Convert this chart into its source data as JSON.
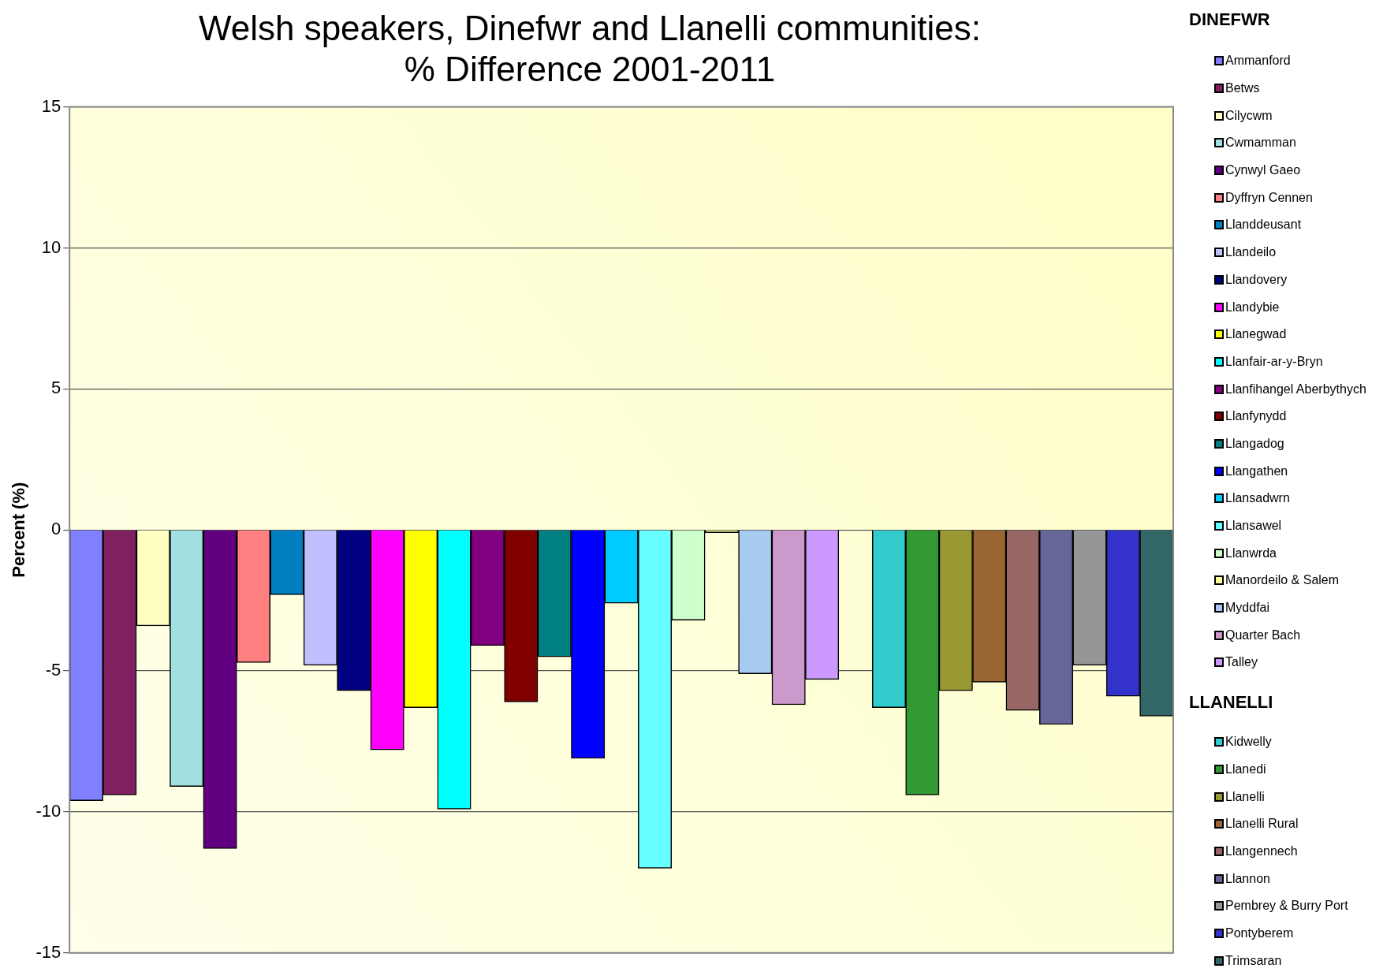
{
  "chart_data": {
    "type": "bar",
    "title": "Welsh speakers, Dinefwr and Llanelli communities:\n% Difference 2001-2011",
    "ylabel": "Percent (%)",
    "categories": [
      null,
      null,
      null,
      null,
      null,
      null,
      null,
      null,
      null,
      null,
      null,
      null,
      null,
      null,
      null,
      null,
      null,
      null,
      null,
      null,
      null,
      null,
      null,
      null,
      null,
      null,
      null,
      null,
      null,
      null,
      null,
      null,
      null
    ],
    "ylim": [
      -15,
      15
    ],
    "yticks": [
      -15,
      -10,
      -5,
      0,
      5,
      10,
      15
    ],
    "grid": "y",
    "legend": "right",
    "tick_labels": "y",
    "annotations": [
      "DINEFWR",
      "LLANELLI"
    ],
    "series": [
      {
        "name": "Ammanford",
        "color": "#8080ff",
        "values": [
          -9.6,
          null,
          null,
          null,
          null,
          null,
          null,
          null,
          null,
          null,
          null,
          null,
          null,
          null,
          null,
          null,
          null,
          null,
          null,
          null,
          null,
          null,
          null,
          null,
          null,
          null,
          null,
          null,
          null,
          null,
          null,
          null,
          null
        ]
      },
      {
        "name": "Betws",
        "color": "#802060",
        "values": [
          null,
          -9.4,
          null,
          null,
          null,
          null,
          null,
          null,
          null,
          null,
          null,
          null,
          null,
          null,
          null,
          null,
          null,
          null,
          null,
          null,
          null,
          null,
          null,
          null,
          null,
          null,
          null,
          null,
          null,
          null,
          null,
          null,
          null
        ]
      },
      {
        "name": "Cilycwm",
        "color": "#ffffc0",
        "values": [
          null,
          null,
          -3.4,
          null,
          null,
          null,
          null,
          null,
          null,
          null,
          null,
          null,
          null,
          null,
          null,
          null,
          null,
          null,
          null,
          null,
          null,
          null,
          null,
          null,
          null,
          null,
          null,
          null,
          null,
          null,
          null,
          null,
          null
        ]
      },
      {
        "name": "Cwmamman",
        "color": "#a0e0e0",
        "values": [
          null,
          null,
          null,
          -9.1,
          null,
          null,
          null,
          null,
          null,
          null,
          null,
          null,
          null,
          null,
          null,
          null,
          null,
          null,
          null,
          null,
          null,
          null,
          null,
          null,
          null,
          null,
          null,
          null,
          null,
          null,
          null,
          null,
          null
        ]
      },
      {
        "name": "Cynwyl Gaeo",
        "color": "#600080",
        "values": [
          null,
          null,
          null,
          null,
          -11.3,
          null,
          null,
          null,
          null,
          null,
          null,
          null,
          null,
          null,
          null,
          null,
          null,
          null,
          null,
          null,
          null,
          null,
          null,
          null,
          null,
          null,
          null,
          null,
          null,
          null,
          null,
          null,
          null
        ]
      },
      {
        "name": "Dyffryn Cennen",
        "color": "#ff8080",
        "values": [
          null,
          null,
          null,
          null,
          null,
          -4.7,
          null,
          null,
          null,
          null,
          null,
          null,
          null,
          null,
          null,
          null,
          null,
          null,
          null,
          null,
          null,
          null,
          null,
          null,
          null,
          null,
          null,
          null,
          null,
          null,
          null,
          null,
          null
        ]
      },
      {
        "name": "Llanddeusant",
        "color": "#0080c0",
        "values": [
          null,
          null,
          null,
          null,
          null,
          null,
          -2.3,
          null,
          null,
          null,
          null,
          null,
          null,
          null,
          null,
          null,
          null,
          null,
          null,
          null,
          null,
          null,
          null,
          null,
          null,
          null,
          null,
          null,
          null,
          null,
          null,
          null,
          null
        ]
      },
      {
        "name": "Llandeilo",
        "color": "#c0c0ff",
        "values": [
          null,
          null,
          null,
          null,
          null,
          null,
          null,
          -4.8,
          null,
          null,
          null,
          null,
          null,
          null,
          null,
          null,
          null,
          null,
          null,
          null,
          null,
          null,
          null,
          null,
          null,
          null,
          null,
          null,
          null,
          null,
          null,
          null,
          null
        ]
      },
      {
        "name": "Llandovery",
        "color": "#000080",
        "values": [
          null,
          null,
          null,
          null,
          null,
          null,
          null,
          null,
          -5.7,
          null,
          null,
          null,
          null,
          null,
          null,
          null,
          null,
          null,
          null,
          null,
          null,
          null,
          null,
          null,
          null,
          null,
          null,
          null,
          null,
          null,
          null,
          null,
          null
        ]
      },
      {
        "name": "Llandybie",
        "color": "#ff00ff",
        "values": [
          null,
          null,
          null,
          null,
          null,
          null,
          null,
          null,
          null,
          -7.8,
          null,
          null,
          null,
          null,
          null,
          null,
          null,
          null,
          null,
          null,
          null,
          null,
          null,
          null,
          null,
          null,
          null,
          null,
          null,
          null,
          null,
          null,
          null
        ]
      },
      {
        "name": "Llanegwad",
        "color": "#ffff00",
        "values": [
          null,
          null,
          null,
          null,
          null,
          null,
          null,
          null,
          null,
          null,
          -6.3,
          null,
          null,
          null,
          null,
          null,
          null,
          null,
          null,
          null,
          null,
          null,
          null,
          null,
          null,
          null,
          null,
          null,
          null,
          null,
          null,
          null,
          null
        ]
      },
      {
        "name": "Llanfair-ar-y-Bryn",
        "color": "#00ffff",
        "values": [
          null,
          null,
          null,
          null,
          null,
          null,
          null,
          null,
          null,
          null,
          null,
          -9.9,
          null,
          null,
          null,
          null,
          null,
          null,
          null,
          null,
          null,
          null,
          null,
          null,
          null,
          null,
          null,
          null,
          null,
          null,
          null,
          null,
          null
        ]
      },
      {
        "name": "Llanfihangel Aberbythych",
        "color": "#800080",
        "values": [
          null,
          null,
          null,
          null,
          null,
          null,
          null,
          null,
          null,
          null,
          null,
          null,
          -4.1,
          null,
          null,
          null,
          null,
          null,
          null,
          null,
          null,
          null,
          null,
          null,
          null,
          null,
          null,
          null,
          null,
          null,
          null,
          null,
          null
        ]
      },
      {
        "name": "Llanfynydd",
        "color": "#800000",
        "values": [
          null,
          null,
          null,
          null,
          null,
          null,
          null,
          null,
          null,
          null,
          null,
          null,
          null,
          -6.1,
          null,
          null,
          null,
          null,
          null,
          null,
          null,
          null,
          null,
          null,
          null,
          null,
          null,
          null,
          null,
          null,
          null,
          null,
          null
        ]
      },
      {
        "name": "Llangadog",
        "color": "#008080",
        "values": [
          null,
          null,
          null,
          null,
          null,
          null,
          null,
          null,
          null,
          null,
          null,
          null,
          null,
          null,
          -4.5,
          null,
          null,
          null,
          null,
          null,
          null,
          null,
          null,
          null,
          null,
          null,
          null,
          null,
          null,
          null,
          null,
          null,
          null
        ]
      },
      {
        "name": "Llangathen",
        "color": "#0000ff",
        "values": [
          null,
          null,
          null,
          null,
          null,
          null,
          null,
          null,
          null,
          null,
          null,
          null,
          null,
          null,
          null,
          -8.1,
          null,
          null,
          null,
          null,
          null,
          null,
          null,
          null,
          null,
          null,
          null,
          null,
          null,
          null,
          null,
          null,
          null
        ]
      },
      {
        "name": "Llansadwrn",
        "color": "#00ccff",
        "values": [
          null,
          null,
          null,
          null,
          null,
          null,
          null,
          null,
          null,
          null,
          null,
          null,
          null,
          null,
          null,
          null,
          -2.6,
          null,
          null,
          null,
          null,
          null,
          null,
          null,
          null,
          null,
          null,
          null,
          null,
          null,
          null,
          null,
          null
        ]
      },
      {
        "name": "Llansawel",
        "color": "#66ffff",
        "values": [
          null,
          null,
          null,
          null,
          null,
          null,
          null,
          null,
          null,
          null,
          null,
          null,
          null,
          null,
          null,
          null,
          null,
          -12.0,
          null,
          null,
          null,
          null,
          null,
          null,
          null,
          null,
          null,
          null,
          null,
          null,
          null,
          null,
          null
        ]
      },
      {
        "name": "Llanwrda",
        "color": "#ccffcc",
        "values": [
          null,
          null,
          null,
          null,
          null,
          null,
          null,
          null,
          null,
          null,
          null,
          null,
          null,
          null,
          null,
          null,
          null,
          null,
          -3.2,
          null,
          null,
          null,
          null,
          null,
          null,
          null,
          null,
          null,
          null,
          null,
          null,
          null,
          null
        ]
      },
      {
        "name": "Manordeilo & Salem",
        "color": "#ffff99",
        "values": [
          null,
          null,
          null,
          null,
          null,
          null,
          null,
          null,
          null,
          null,
          null,
          null,
          null,
          null,
          null,
          null,
          null,
          null,
          null,
          -0.1,
          null,
          null,
          null,
          null,
          null,
          null,
          null,
          null,
          null,
          null,
          null,
          null,
          null
        ]
      },
      {
        "name": "Myddfai",
        "color": "#a6caf0",
        "values": [
          null,
          null,
          null,
          null,
          null,
          null,
          null,
          null,
          null,
          null,
          null,
          null,
          null,
          null,
          null,
          null,
          null,
          null,
          null,
          null,
          -5.1,
          null,
          null,
          null,
          null,
          null,
          null,
          null,
          null,
          null,
          null,
          null,
          null
        ]
      },
      {
        "name": "Quarter Bach",
        "color": "#cc99cc",
        "values": [
          null,
          null,
          null,
          null,
          null,
          null,
          null,
          null,
          null,
          null,
          null,
          null,
          null,
          null,
          null,
          null,
          null,
          null,
          null,
          null,
          null,
          -6.2,
          null,
          null,
          null,
          null,
          null,
          null,
          null,
          null,
          null,
          null,
          null
        ]
      },
      {
        "name": "Talley",
        "color": "#cc99ff",
        "values": [
          null,
          null,
          null,
          null,
          null,
          null,
          null,
          null,
          null,
          null,
          null,
          null,
          null,
          null,
          null,
          null,
          null,
          null,
          null,
          null,
          null,
          null,
          -5.3,
          null,
          null,
          null,
          null,
          null,
          null,
          null,
          null,
          null,
          null
        ]
      },
      {
        "name": "Kidwelly",
        "color": "#33cccc",
        "values": [
          null,
          null,
          null,
          null,
          null,
          null,
          null,
          null,
          null,
          null,
          null,
          null,
          null,
          null,
          null,
          null,
          null,
          null,
          null,
          null,
          null,
          null,
          null,
          null,
          -6.3,
          null,
          null,
          null,
          null,
          null,
          null,
          null,
          null
        ]
      },
      {
        "name": "Llanedi",
        "color": "#339933",
        "values": [
          null,
          null,
          null,
          null,
          null,
          null,
          null,
          null,
          null,
          null,
          null,
          null,
          null,
          null,
          null,
          null,
          null,
          null,
          null,
          null,
          null,
          null,
          null,
          null,
          null,
          -9.4,
          null,
          null,
          null,
          null,
          null,
          null,
          null
        ]
      },
      {
        "name": "Llanelli",
        "color": "#999933",
        "values": [
          null,
          null,
          null,
          null,
          null,
          null,
          null,
          null,
          null,
          null,
          null,
          null,
          null,
          null,
          null,
          null,
          null,
          null,
          null,
          null,
          null,
          null,
          null,
          null,
          null,
          null,
          -5.7,
          null,
          null,
          null,
          null,
          null,
          null
        ]
      },
      {
        "name": "Llanelli Rural",
        "color": "#996633",
        "values": [
          null,
          null,
          null,
          null,
          null,
          null,
          null,
          null,
          null,
          null,
          null,
          null,
          null,
          null,
          null,
          null,
          null,
          null,
          null,
          null,
          null,
          null,
          null,
          null,
          null,
          null,
          null,
          -5.4,
          null,
          null,
          null,
          null,
          null
        ]
      },
      {
        "name": "Llangennech",
        "color": "#996666",
        "values": [
          null,
          null,
          null,
          null,
          null,
          null,
          null,
          null,
          null,
          null,
          null,
          null,
          null,
          null,
          null,
          null,
          null,
          null,
          null,
          null,
          null,
          null,
          null,
          null,
          null,
          null,
          null,
          null,
          -6.4,
          null,
          null,
          null,
          null
        ]
      },
      {
        "name": "Llannon",
        "color": "#666699",
        "values": [
          null,
          null,
          null,
          null,
          null,
          null,
          null,
          null,
          null,
          null,
          null,
          null,
          null,
          null,
          null,
          null,
          null,
          null,
          null,
          null,
          null,
          null,
          null,
          null,
          null,
          null,
          null,
          null,
          null,
          -6.9,
          null,
          null,
          null
        ]
      },
      {
        "name": "Pembrey & Burry Port",
        "color": "#969696",
        "values": [
          null,
          null,
          null,
          null,
          null,
          null,
          null,
          null,
          null,
          null,
          null,
          null,
          null,
          null,
          null,
          null,
          null,
          null,
          null,
          null,
          null,
          null,
          null,
          null,
          null,
          null,
          null,
          null,
          null,
          null,
          -4.8,
          null,
          null
        ]
      },
      {
        "name": "Pontyberem",
        "color": "#3333cc",
        "values": [
          null,
          null,
          null,
          null,
          null,
          null,
          null,
          null,
          null,
          null,
          null,
          null,
          null,
          null,
          null,
          null,
          null,
          null,
          null,
          null,
          null,
          null,
          null,
          null,
          null,
          null,
          null,
          null,
          null,
          null,
          null,
          -5.9,
          null
        ]
      },
      {
        "name": "Trimsaran",
        "color": "#336666",
        "values": [
          null,
          null,
          null,
          null,
          null,
          null,
          null,
          null,
          null,
          null,
          null,
          null,
          null,
          null,
          null,
          null,
          null,
          null,
          null,
          null,
          null,
          null,
          null,
          null,
          null,
          null,
          null,
          null,
          null,
          null,
          null,
          null,
          -6.6
        ]
      }
    ]
  }
}
